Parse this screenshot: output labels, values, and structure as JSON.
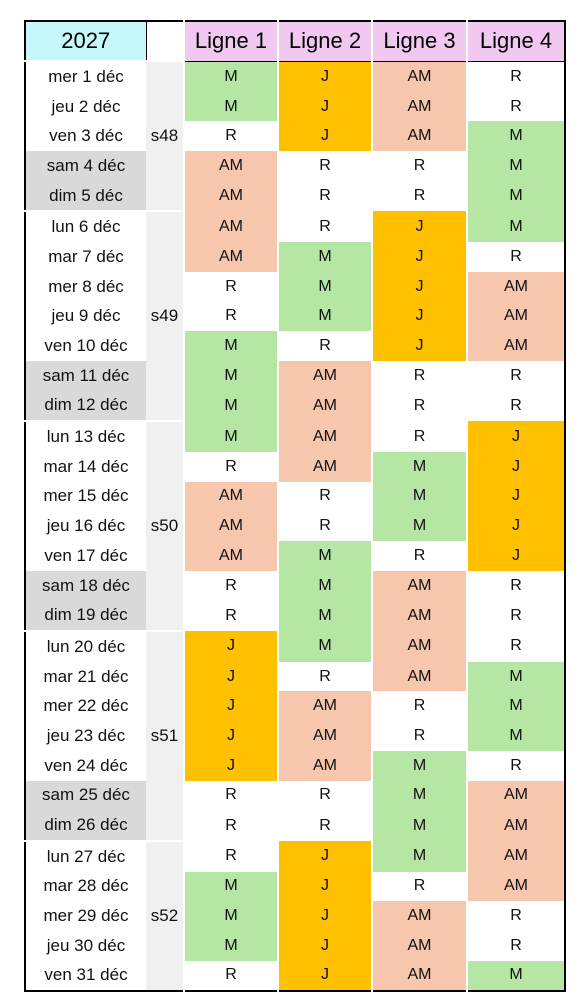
{
  "header": {
    "year": "2027",
    "lines": [
      "Ligne 1",
      "Ligne 2",
      "Ligne 3",
      "Ligne 4"
    ]
  },
  "weeks": [
    {
      "label": "s48",
      "weekdays": [
        {
          "date": "mer 1 déc",
          "cells": [
            "M",
            "J",
            "AM",
            "R"
          ]
        },
        {
          "date": "jeu 2 déc",
          "cells": [
            "M",
            "J",
            "AM",
            "R"
          ]
        },
        {
          "date": "ven 3 déc",
          "cells": [
            "R",
            "J",
            "AM",
            "M"
          ]
        }
      ],
      "weekend": [
        {
          "date": "sam 4 déc",
          "cells": [
            "AM",
            "R",
            "R",
            "M"
          ]
        },
        {
          "date": "dim 5 déc",
          "cells": [
            "AM",
            "R",
            "R",
            "M"
          ]
        }
      ]
    },
    {
      "label": "s49",
      "weekdays": [
        {
          "date": "lun 6 déc",
          "cells": [
            "AM",
            "R",
            "J",
            "M"
          ]
        },
        {
          "date": "mar 7 déc",
          "cells": [
            "AM",
            "M",
            "J",
            "R"
          ]
        },
        {
          "date": "mer 8 déc",
          "cells": [
            "R",
            "M",
            "J",
            "AM"
          ]
        },
        {
          "date": "jeu 9 déc",
          "cells": [
            "R",
            "M",
            "J",
            "AM"
          ]
        },
        {
          "date": "ven 10 déc",
          "cells": [
            "M",
            "R",
            "J",
            "AM"
          ]
        }
      ],
      "weekend": [
        {
          "date": "sam 11 déc",
          "cells": [
            "M",
            "AM",
            "R",
            "R"
          ]
        },
        {
          "date": "dim 12 déc",
          "cells": [
            "M",
            "AM",
            "R",
            "R"
          ]
        }
      ]
    },
    {
      "label": "s50",
      "weekdays": [
        {
          "date": "lun 13 déc",
          "cells": [
            "M",
            "AM",
            "R",
            "J"
          ]
        },
        {
          "date": "mar 14 déc",
          "cells": [
            "R",
            "AM",
            "M",
            "J"
          ]
        },
        {
          "date": "mer 15 déc",
          "cells": [
            "AM",
            "R",
            "M",
            "J"
          ]
        },
        {
          "date": "jeu 16 déc",
          "cells": [
            "AM",
            "R",
            "M",
            "J"
          ]
        },
        {
          "date": "ven 17 déc",
          "cells": [
            "AM",
            "M",
            "R",
            "J"
          ]
        }
      ],
      "weekend": [
        {
          "date": "sam 18 déc",
          "cells": [
            "R",
            "M",
            "AM",
            "R"
          ]
        },
        {
          "date": "dim 19 déc",
          "cells": [
            "R",
            "M",
            "AM",
            "R"
          ]
        }
      ]
    },
    {
      "label": "s51",
      "weekdays": [
        {
          "date": "lun 20 déc",
          "cells": [
            "J",
            "M",
            "AM",
            "R"
          ]
        },
        {
          "date": "mar 21 déc",
          "cells": [
            "J",
            "R",
            "AM",
            "M"
          ]
        },
        {
          "date": "mer 22 déc",
          "cells": [
            "J",
            "AM",
            "R",
            "M"
          ]
        },
        {
          "date": "jeu 23 déc",
          "cells": [
            "J",
            "AM",
            "R",
            "M"
          ]
        },
        {
          "date": "ven 24 déc",
          "cells": [
            "J",
            "AM",
            "M",
            "R"
          ]
        }
      ],
      "weekend": [
        {
          "date": "sam 25 déc",
          "cells": [
            "R",
            "R",
            "M",
            "AM"
          ]
        },
        {
          "date": "dim 26 déc",
          "cells": [
            "R",
            "R",
            "M",
            "AM"
          ]
        }
      ]
    },
    {
      "label": "s52",
      "weekdays": [
        {
          "date": "lun 27 déc",
          "cells": [
            "R",
            "J",
            "M",
            "AM"
          ]
        },
        {
          "date": "mar 28 déc",
          "cells": [
            "M",
            "J",
            "R",
            "AM"
          ]
        },
        {
          "date": "mer 29 déc",
          "cells": [
            "M",
            "J",
            "AM",
            "R"
          ]
        },
        {
          "date": "jeu 30 déc",
          "cells": [
            "M",
            "J",
            "AM",
            "R"
          ]
        },
        {
          "date": "ven 31 déc",
          "cells": [
            "R",
            "J",
            "AM",
            "M"
          ]
        }
      ],
      "weekend": []
    }
  ]
}
